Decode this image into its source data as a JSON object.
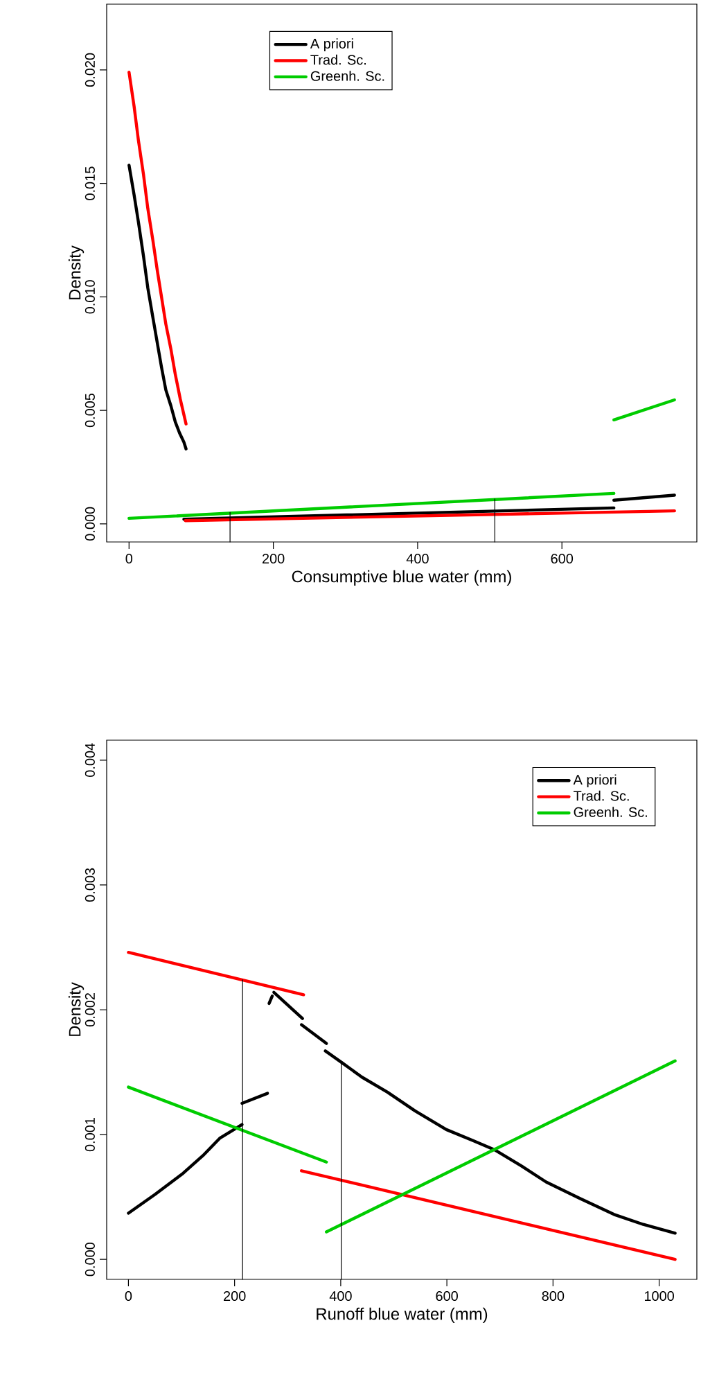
{
  "chart_data": [
    {
      "type": "line",
      "xlabel": "Consumptive blue water (mm)",
      "ylabel": "Density",
      "xlim": [
        -31,
        787
      ],
      "ylim": [
        -0.0008,
        0.0229
      ],
      "xticks": [
        0,
        200,
        400,
        600
      ],
      "yticks": [
        {
          "value": 0,
          "label": "0.000"
        },
        {
          "value": 0.005,
          "label": "0.005"
        },
        {
          "value": 0.01,
          "label": "0.010"
        },
        {
          "value": 0.015,
          "label": "0.015"
        },
        {
          "value": 0.02,
          "label": "0.020"
        }
      ],
      "legend": "top",
      "grid": false,
      "marker": "none",
      "line_style": "solid",
      "series": [
        {
          "name": "A priori",
          "color": "#000000",
          "x": [
            0,
            7,
            13,
            20,
            26,
            33,
            39,
            45,
            51,
            58,
            64,
            70,
            76,
            79
          ],
          "values": [
            0.0158,
            0.0145,
            0.0133,
            0.0118,
            0.0104,
            0.0091,
            0.008,
            0.0069,
            0.0059,
            0.0052,
            0.0045,
            0.004,
            0.0036,
            0.0033
          ]
        },
        {
          "color": "#000000",
          "x": [
            76,
            672
          ],
          "values": [
            0.0002,
            0.0007
          ]
        },
        {
          "color": "#000000",
          "x": [
            672,
            756
          ],
          "values": [
            0.00104,
            0.00126
          ]
        },
        {
          "name": "Trad. Sc.",
          "color": "#ff0000",
          "x": [
            0,
            7,
            13,
            20,
            26,
            33,
            39,
            45,
            51,
            58,
            64,
            71,
            79
          ],
          "values": [
            0.0199,
            0.0184,
            0.0169,
            0.0154,
            0.0139,
            0.0125,
            0.0112,
            0.01,
            0.0088,
            0.0077,
            0.0066,
            0.0055,
            0.0044
          ]
        },
        {
          "color": "#ff0000",
          "x": [
            78,
            756
          ],
          "values": [
            0.00014,
            0.00057
          ]
        },
        {
          "name": "Greenh. Sc.",
          "color": "#00cc00",
          "x": [
            0,
            672
          ],
          "values": [
            0.00024,
            0.00134
          ]
        },
        {
          "color": "#00cc00",
          "x": [
            672,
            756
          ],
          "values": [
            0.00458,
            0.00546
          ]
        },
        {
          "color": "#000000",
          "x": [
            140,
            140
          ],
          "values": [
            -0.0008,
            0.0005
          ]
        },
        {
          "color": "#000000",
          "x": [
            507,
            507
          ],
          "values": [
            -0.0008,
            0.0011
          ]
        }
      ]
    },
    {
      "type": "line",
      "xlabel": "Runoff blue water (mm)",
      "ylabel": "Density",
      "xlim": [
        -41,
        1071
      ],
      "ylim": [
        -0.00016,
        0.00416
      ],
      "xticks": [
        0,
        200,
        400,
        600,
        800,
        1000
      ],
      "yticks": [
        {
          "value": 0,
          "label": "0.000"
        },
        {
          "value": 0.001,
          "label": "0.001"
        },
        {
          "value": 0.002,
          "label": "0.002"
        },
        {
          "value": 0.003,
          "label": "0.003"
        },
        {
          "value": 0.004,
          "label": "0.004"
        }
      ],
      "legend": "top right",
      "grid": false,
      "marker": "none",
      "line_style": "solid",
      "series": [
        {
          "name": "A priori",
          "color": "#000000",
          "x": [
            0,
            50,
            103,
            140,
            172,
            195,
            214
          ],
          "values": [
            0.00037,
            0.00052,
            0.00069,
            0.00083,
            0.00097,
            0.00103,
            0.00108
          ]
        },
        {
          "color": "#000000",
          "x": [
            214,
            262
          ],
          "values": [
            0.00125,
            0.00133
          ]
        },
        {
          "color": "#000000",
          "x": [
            265,
            271
          ],
          "values": [
            0.00205,
            0.00211
          ]
        },
        {
          "color": "#000000",
          "x": [
            274,
            328
          ],
          "values": [
            0.00214,
            0.00193
          ]
        },
        {
          "color": "#000000",
          "x": [
            326,
            373
          ],
          "values": [
            0.00188,
            0.00173
          ]
        },
        {
          "color": "#000000",
          "x": [
            371,
            401,
            440,
            488,
            540,
            599,
            650,
            689,
            740,
            787,
            850,
            915,
            970,
            1030
          ],
          "values": [
            0.00167,
            0.00158,
            0.00146,
            0.00134,
            0.00119,
            0.00104,
            0.00095,
            0.00088,
            0.00075,
            0.00062,
            0.00049,
            0.00036,
            0.00028,
            0.00021
          ]
        },
        {
          "name": "Trad. Sc.",
          "color": "#ff0000",
          "x": [
            0,
            330
          ],
          "values": [
            0.00246,
            0.00212
          ]
        },
        {
          "color": "#ff0000",
          "x": [
            326,
            1030
          ],
          "values": [
            0.00071,
            0
          ]
        },
        {
          "name": "Greenh. Sc.",
          "color": "#00cc00",
          "x": [
            0,
            373
          ],
          "values": [
            0.00138,
            0.00078
          ]
        },
        {
          "color": "#00cc00",
          "x": [
            373,
            1030
          ],
          "values": [
            0.00022,
            0.00159
          ]
        },
        {
          "color": "#000000",
          "x": [
            215,
            215
          ],
          "values": [
            -0.00016,
            0.00224
          ]
        },
        {
          "color": "#000000",
          "x": [
            401,
            401
          ],
          "values": [
            -0.00016,
            0.00158
          ]
        }
      ]
    }
  ]
}
